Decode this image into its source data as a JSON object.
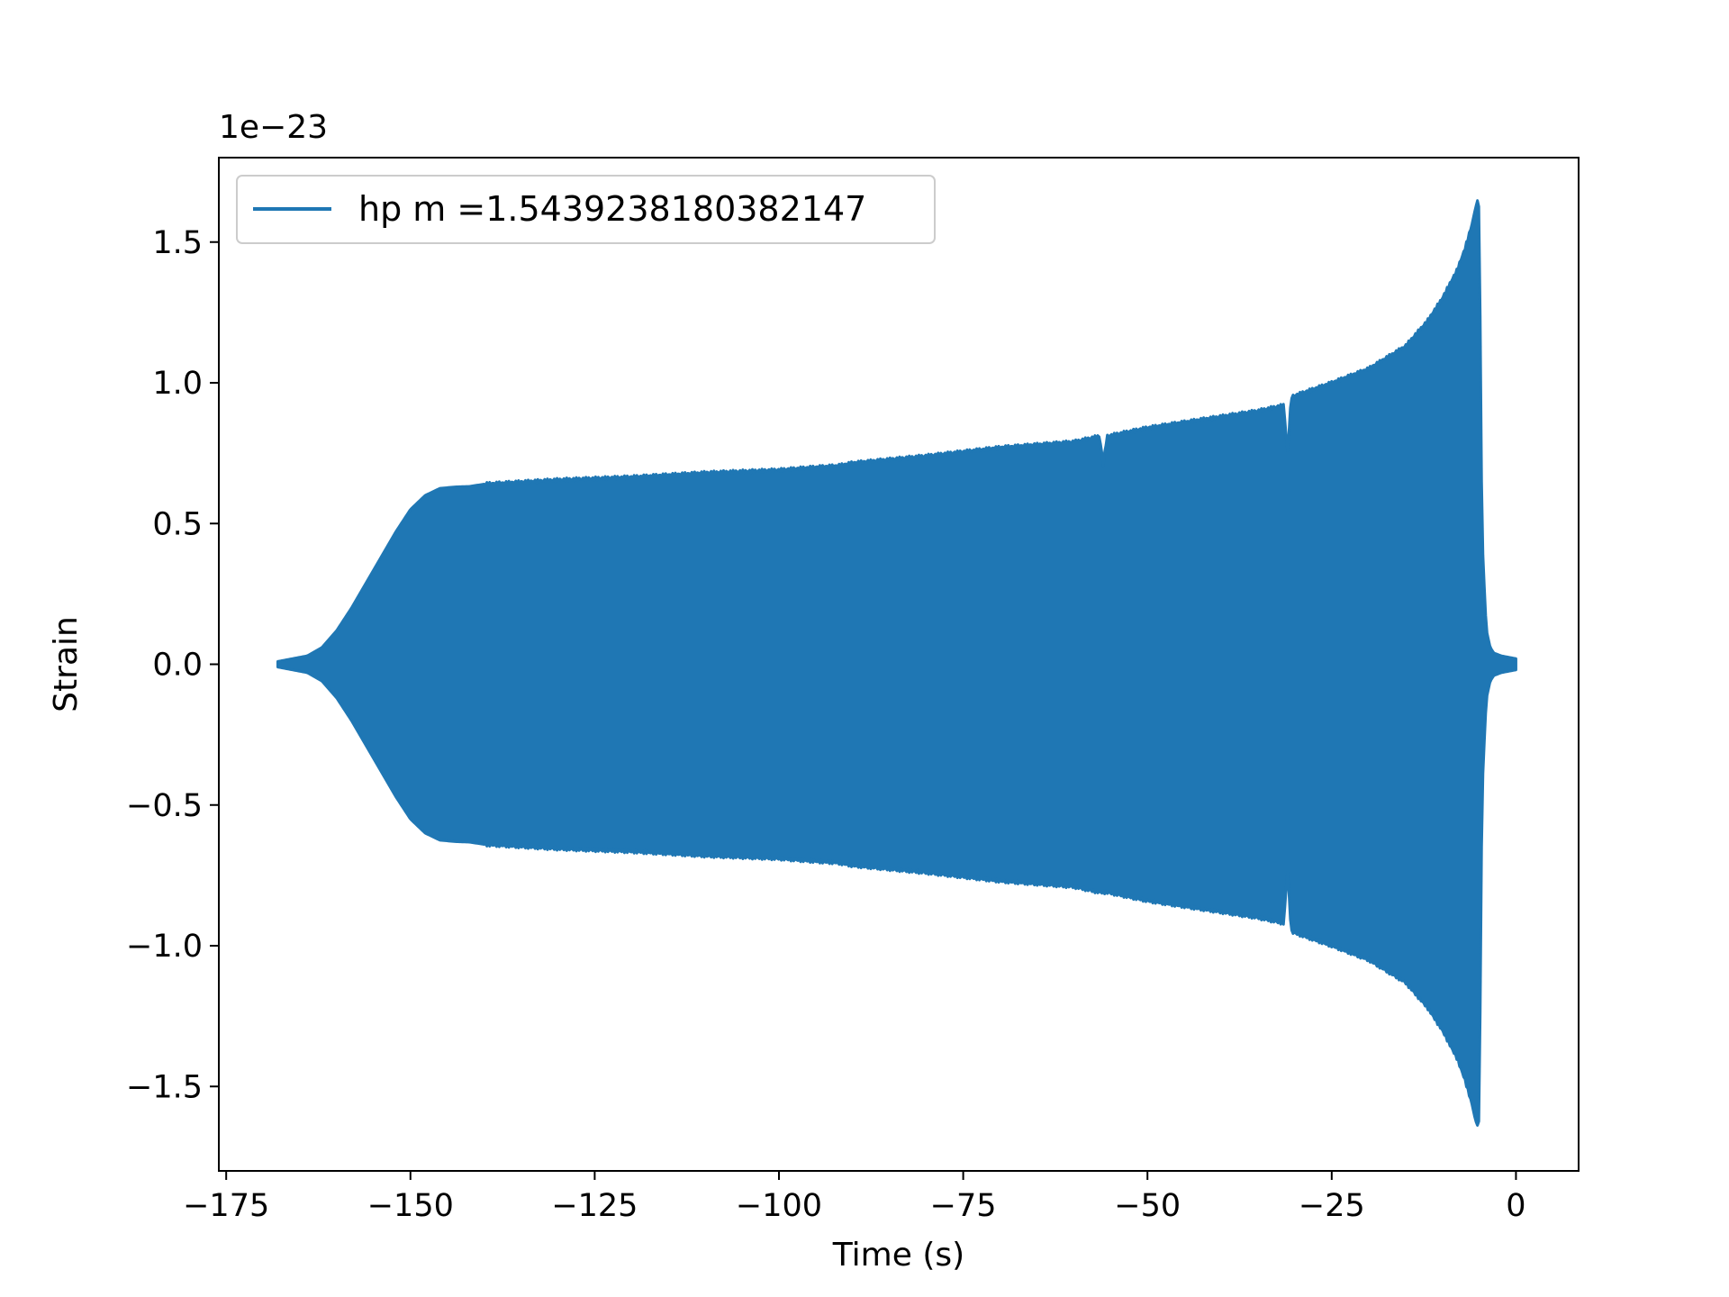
{
  "chart_data": {
    "type": "line",
    "title": "",
    "xlabel": "Time (s)",
    "ylabel": "Strain",
    "y_offset_label": "1e−23",
    "xlim": [
      -176,
      8.5
    ],
    "ylim": [
      -1.8,
      1.8
    ],
    "x_ticks": [
      -175,
      -150,
      -125,
      -100,
      -75,
      -50,
      -25,
      0
    ],
    "x_tick_labels": [
      "−175",
      "−150",
      "−125",
      "−100",
      "−75",
      "−50",
      "−25",
      "0"
    ],
    "y_ticks": [
      -1.5,
      -1.0,
      -0.5,
      0.0,
      0.5,
      1.0,
      1.5
    ],
    "y_tick_labels": [
      "−1.5",
      "−1.0",
      "−0.5",
      "0.0",
      "0.5",
      "1.0",
      "1.5"
    ],
    "grid": false,
    "legend_position": "top-left",
    "series": [
      {
        "name": "hp m =1.5439238180382147",
        "color": "#1f77b4",
        "envelope": {
          "t": [
            -168,
            -166,
            -164,
            -162,
            -160,
            -158,
            -156,
            -154,
            -152,
            -150,
            -148,
            -146,
            -144,
            -142,
            -140,
            -130,
            -120,
            -110,
            -100,
            -95,
            -92,
            -91,
            -90,
            -80,
            -70,
            -60,
            -56.5,
            -56,
            -55.5,
            -50,
            -40,
            -35,
            -31.5,
            -31,
            -30.5,
            -25,
            -20,
            -15,
            -12,
            -10,
            -8,
            -7,
            -6,
            -5.5,
            -5.2,
            -5.0,
            -4.9,
            -4.7,
            -4.5,
            -4.2,
            -4.0,
            -3.5,
            -3.0,
            -2.0,
            0.0
          ],
          "upper": [
            0.01,
            0.02,
            0.03,
            0.06,
            0.12,
            0.2,
            0.29,
            0.38,
            0.47,
            0.55,
            0.6,
            0.625,
            0.63,
            0.632,
            0.64,
            0.655,
            0.665,
            0.68,
            0.69,
            0.7,
            0.705,
            0.71,
            0.715,
            0.74,
            0.77,
            0.79,
            0.81,
            0.71,
            0.81,
            0.84,
            0.88,
            0.9,
            0.92,
            0.75,
            0.95,
            1.0,
            1.05,
            1.13,
            1.22,
            1.3,
            1.4,
            1.47,
            1.56,
            1.62,
            1.65,
            1.62,
            1.4,
            0.7,
            0.4,
            0.22,
            0.12,
            0.06,
            0.04,
            0.03,
            0.02
          ],
          "lower": [
            -0.01,
            -0.02,
            -0.03,
            -0.06,
            -0.12,
            -0.2,
            -0.29,
            -0.38,
            -0.47,
            -0.55,
            -0.6,
            -0.625,
            -0.63,
            -0.632,
            -0.64,
            -0.655,
            -0.665,
            -0.68,
            -0.69,
            -0.7,
            -0.705,
            -0.71,
            -0.715,
            -0.74,
            -0.77,
            -0.79,
            -0.81,
            -0.81,
            -0.81,
            -0.84,
            -0.88,
            -0.9,
            -0.92,
            -0.73,
            -0.95,
            -1.0,
            -1.05,
            -1.13,
            -1.22,
            -1.3,
            -1.4,
            -1.47,
            -1.56,
            -1.62,
            -1.64,
            -1.62,
            -1.4,
            -0.7,
            -0.4,
            -0.22,
            -0.12,
            -0.06,
            -0.04,
            -0.03,
            -0.02
          ]
        }
      }
    ]
  }
}
